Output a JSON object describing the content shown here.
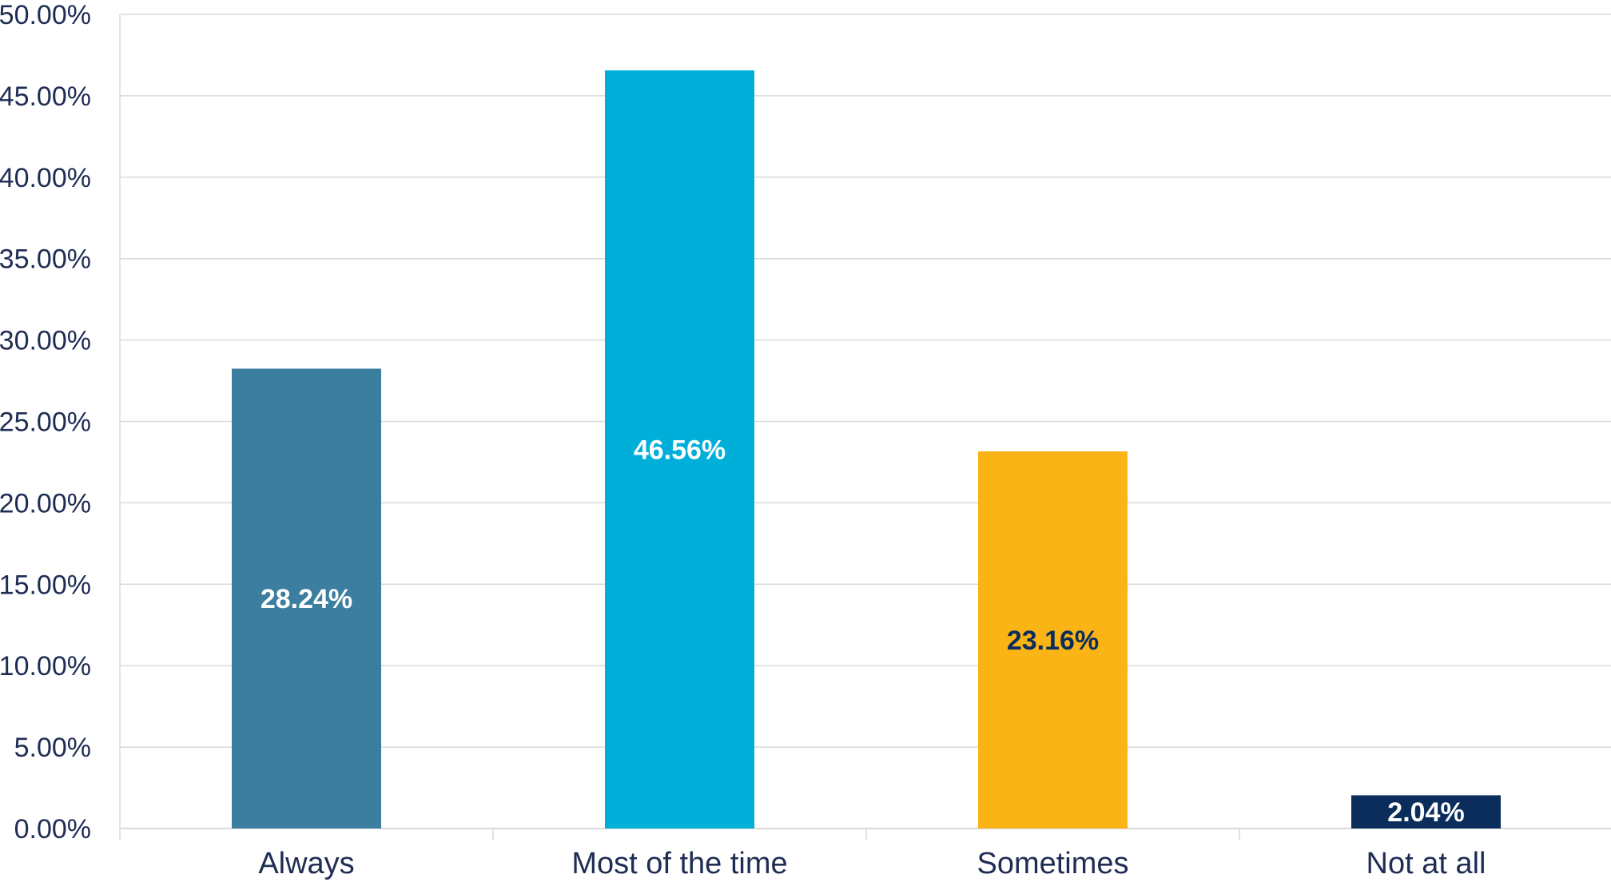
{
  "chart_data": {
    "type": "bar",
    "categories": [
      "Always",
      "Most of the time",
      "Sometimes",
      "Not at all"
    ],
    "values": [
      28.24,
      46.56,
      23.16,
      2.04
    ],
    "value_labels": [
      "28.24%",
      "46.56%",
      "23.16%",
      "2.04%"
    ],
    "bar_colors": [
      "#3c7ea0",
      "#00afd9",
      "#fbb416",
      "#0b2d5c"
    ],
    "label_colors": [
      "#ffffff",
      "#ffffff",
      "#0b2d5c",
      "#ffffff"
    ],
    "title": "",
    "xlabel": "",
    "ylabel": "",
    "ylim": [
      0,
      50
    ],
    "yticks": [
      0,
      5,
      10,
      15,
      20,
      25,
      30,
      35,
      40,
      45,
      50
    ],
    "ytick_labels": [
      "0.00%",
      "5.00%",
      "10.00%",
      "15.00%",
      "20.00%",
      "25.00%",
      "30.00%",
      "35.00%",
      "40.00%",
      "45.00%",
      "50.00%"
    ],
    "grid": true,
    "legend": "none",
    "colors": {
      "text": "#1f2d54",
      "grid": "#d9d9d9"
    }
  }
}
